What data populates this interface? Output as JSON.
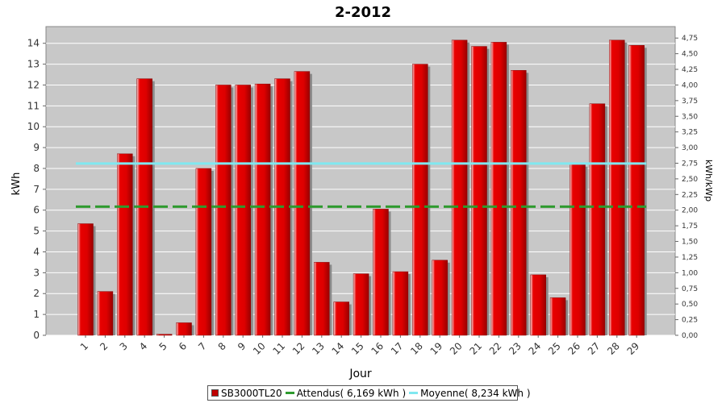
{
  "chart_data": {
    "type": "bar",
    "title": "2-2012",
    "xlabel": "Jour",
    "ylabel": "kWh",
    "y2label": "kWh/kWp",
    "categories": [
      "1",
      "2",
      "3",
      "4",
      "5",
      "6",
      "7",
      "8",
      "9",
      "10",
      "11",
      "12",
      "13",
      "14",
      "15",
      "16",
      "17",
      "18",
      "19",
      "20",
      "21",
      "22",
      "23",
      "24",
      "25",
      "26",
      "27",
      "28",
      "29"
    ],
    "series": [
      {
        "name": "SB3000TL20",
        "values": [
          5.35,
          2.1,
          8.7,
          12.3,
          0.05,
          0.6,
          8.0,
          12.0,
          12.0,
          12.05,
          12.3,
          12.65,
          3.5,
          1.6,
          2.95,
          6.05,
          3.05,
          13.0,
          3.6,
          14.15,
          13.85,
          14.05,
          12.7,
          2.9,
          1.8,
          8.2,
          11.1,
          14.15,
          13.9
        ],
        "color": "#e00000"
      }
    ],
    "reference_lines": [
      {
        "name": "Attendus",
        "value": 6.169,
        "color": "#2e9a2e",
        "style": "dashed"
      },
      {
        "name": "Moyenne",
        "value": 8.234,
        "color": "#80e8f0",
        "style": "solid"
      }
    ],
    "ylim": [
      0,
      14.8
    ],
    "yticks": [
      0,
      1,
      2,
      3,
      4,
      5,
      6,
      7,
      8,
      9,
      10,
      11,
      12,
      13,
      14
    ],
    "y2lim": [
      0,
      4.933
    ],
    "y2ticks": [
      "0,00",
      "0,25",
      "0,50",
      "0,75",
      "1,00",
      "1,25",
      "1,50",
      "1,75",
      "2,00",
      "2,25",
      "2,50",
      "2,75",
      "3,00",
      "3,25",
      "3,50",
      "3,75",
      "4,00",
      "4,25",
      "4,50",
      "4,75"
    ],
    "y2tick_values": [
      0,
      0.25,
      0.5,
      0.75,
      1.0,
      1.25,
      1.5,
      1.75,
      2.0,
      2.25,
      2.5,
      2.75,
      3.0,
      3.25,
      3.5,
      3.75,
      4.0,
      4.25,
      4.5,
      4.75
    ],
    "grid": true,
    "background": "#c8c8c8",
    "legend_position": "bottom-center"
  },
  "legend": {
    "bar": "SB3000TL20",
    "attendus": "Attendus( 6,169 kWh )",
    "moyenne": "Moyenne( 8,234 kWh )"
  }
}
